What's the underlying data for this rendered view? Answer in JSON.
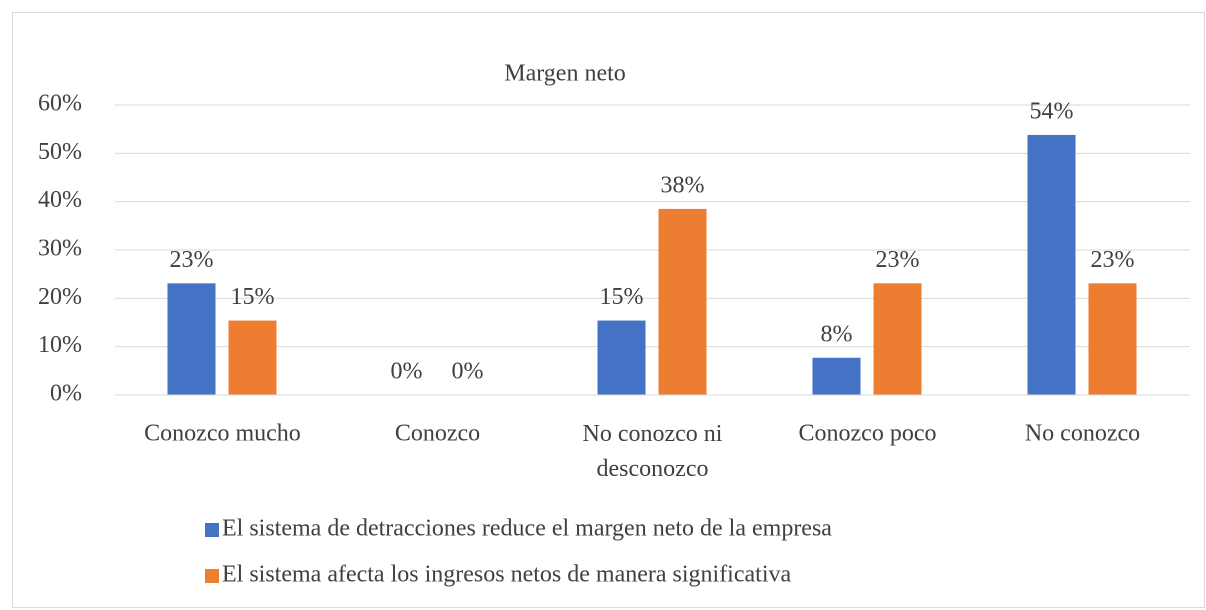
{
  "chart_data": {
    "type": "bar",
    "title": "Margen neto",
    "categories": [
      "Conozco mucho",
      "Conozco",
      "No conozco ni desconozco",
      "Conozco poco",
      "No conozco"
    ],
    "series": [
      {
        "name": "El sistema de detracciones reduce el margen neto de la empresa",
        "color": "#4472c4",
        "values": [
          23.1,
          0,
          15.4,
          7.7,
          53.8
        ],
        "value_labels": [
          "23%",
          "0%",
          "15%",
          "8%",
          "54%"
        ]
      },
      {
        "name": "El sistema afecta los ingresos netos de manera significativa",
        "color": "#ed7d31",
        "values": [
          15.4,
          0,
          38.5,
          23.1,
          23.1
        ],
        "value_labels": [
          "15%",
          "0%",
          "38%",
          "23%",
          "23%"
        ]
      }
    ],
    "ylim": [
      0,
      60
    ],
    "yticks": [
      {
        "value": 0,
        "label": "0%"
      },
      {
        "value": 10,
        "label": "10%"
      },
      {
        "value": 20,
        "label": "20%"
      },
      {
        "value": 30,
        "label": "30%"
      },
      {
        "value": 40,
        "label": "40%"
      },
      {
        "value": 50,
        "label": "50%"
      },
      {
        "value": 60,
        "label": "60%"
      }
    ],
    "grid": true,
    "legend": "bottom"
  }
}
